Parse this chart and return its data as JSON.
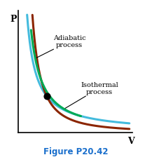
{
  "title": "Figure P20.42",
  "title_color": "#1a6fcc",
  "title_fontsize": 8.5,
  "xlabel": "V",
  "ylabel": "P",
  "background_color": "#ffffff",
  "isothermal_color": "#44bbdd",
  "adiabatic_color": "#8b2500",
  "green_color": "#00aa55",
  "line_width": 2.2,
  "dot_size": 40,
  "label_adiabatic": "Adiabatic\nprocess",
  "label_isothermal": "Isothermal\nprocess",
  "label_fontsize": 7.0,
  "figsize": [
    2.17,
    2.32
  ],
  "dpi": 100
}
